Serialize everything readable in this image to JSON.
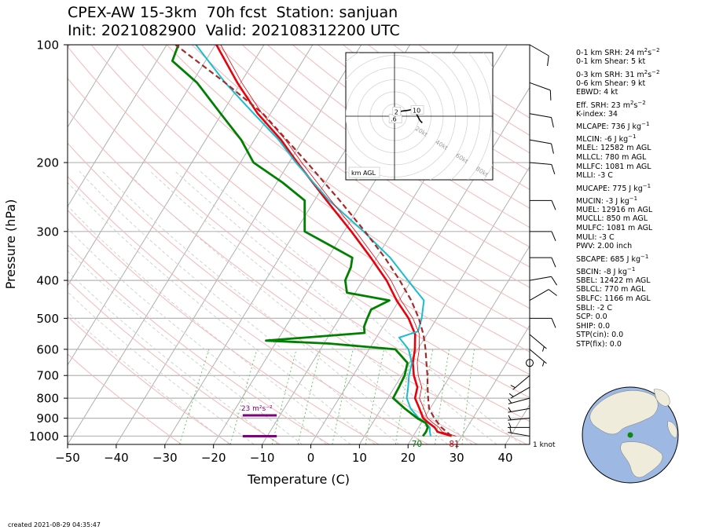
{
  "title": {
    "line1": "CPEX-AW 15-3km  70h fcst  Station: sanjuan",
    "line2": "Init: 2021082900  Valid: 202108312200 UTC"
  },
  "footer": {
    "created": "created 2021-08-29 04:35:47"
  },
  "colors": {
    "temperature": "#e8000b",
    "dewpoint": "#008000",
    "wetbulb": "#17becf",
    "parcel": "#a52a2a",
    "srh_bar": "#800080",
    "isotherm": "#b0b0b0",
    "dry_adiabat": "#f4b8b8",
    "mixing_ratio": "#5fbf5f",
    "moist_adiabat": "#c8c8c8"
  },
  "indices": [
    {
      "pre": "0-1 km SRH: 24 m",
      "sup1": "2",
      "mid": "s",
      "sup2": "−2",
      "post": ""
    },
    {
      "pre": "0-1 km Shear: 5 kt"
    },
    {
      "pre": "0-3 km SRH: 31 m",
      "sup1": "2",
      "mid": "s",
      "sup2": "−2",
      "post": ""
    },
    {
      "pre": "0-6 km Shear: 9 kt"
    },
    {
      "pre": "EBWD: 4 kt"
    },
    {
      "pre": "Eff. SRH: 23 m",
      "sup1": "2",
      "mid": "s",
      "sup2": "−2",
      "post": ""
    },
    {
      "pre": "K-index: 34"
    },
    {
      "pre": "MLCAPE: 736 J kg",
      "sup1": "−1"
    },
    {
      "pre": "MLCIN: -6 J kg",
      "sup1": "−1"
    },
    {
      "pre": "MLEL: 12582 m AGL"
    },
    {
      "pre": "MLLCL: 780 m AGL"
    },
    {
      "pre": "MLLFC: 1081 m AGL"
    },
    {
      "pre": "MLLI: -3 C"
    },
    {
      "pre": "MUCAPE: 775 J kg",
      "sup1": "−1"
    },
    {
      "pre": "MUCIN: -3 J kg",
      "sup1": "−1"
    },
    {
      "pre": "MUEL: 12916 m AGL"
    },
    {
      "pre": "MUCLL: 850 m AGL"
    },
    {
      "pre": "MULFC: 1081 m AGL"
    },
    {
      "pre": "MULI: -3 C"
    },
    {
      "pre": "PWV: 2.00 inch"
    },
    {
      "pre": "SBCAPE: 685 J kg",
      "sup1": "−1"
    },
    {
      "pre": "SBCIN: -8 J kg",
      "sup1": "−1"
    },
    {
      "pre": "SBEL: 12422 m AGL"
    },
    {
      "pre": "SBLCL: 770 m AGL"
    },
    {
      "pre": "SBLFC: 1166 m AGL"
    },
    {
      "pre": "SBLI: -2 C"
    },
    {
      "pre": "SCP: 0.0"
    },
    {
      "pre": "SHIP: 0.0"
    },
    {
      "pre": "STP(cin): 0.0"
    },
    {
      "pre": "STP(fix): 0.0"
    }
  ],
  "chart_data": {
    "type": "skew-t",
    "xlabel": "Temperature (C)",
    "ylabel": "Pressure (hPa)",
    "x_ticks": [
      -50,
      -40,
      -30,
      -20,
      -10,
      0,
      10,
      20,
      30,
      40
    ],
    "y_ticks": [
      100,
      200,
      300,
      400,
      500,
      600,
      700,
      800,
      900,
      1000
    ],
    "xlim": [
      -50,
      45
    ],
    "ylim": [
      1050,
      100
    ],
    "yscale": "log",
    "grid": true,
    "surface_labels": {
      "temperature": "81",
      "dewpoint": "70"
    },
    "series": [
      {
        "id": "temperature",
        "points": [
          [
            1000,
            27.9
          ],
          [
            975,
            24.5
          ],
          [
            950,
            23.3
          ],
          [
            925,
            21.5
          ],
          [
            900,
            19.8
          ],
          [
            850,
            17.8
          ],
          [
            800,
            15.6
          ],
          [
            750,
            14.7
          ],
          [
            700,
            12.5
          ],
          [
            650,
            10.7
          ],
          [
            600,
            9.4
          ],
          [
            550,
            7.6
          ],
          [
            500,
            4.2
          ],
          [
            450,
            -0.5
          ],
          [
            400,
            -5.1
          ],
          [
            350,
            -11.2
          ],
          [
            300,
            -18.5
          ],
          [
            250,
            -27.5
          ],
          [
            200,
            -38.3
          ],
          [
            175,
            -44.5
          ],
          [
            150,
            -52.6
          ],
          [
            125,
            -60.7
          ],
          [
            100,
            -69.8
          ]
        ]
      },
      {
        "id": "wetbulb",
        "points": [
          [
            1000,
            23.6
          ],
          [
            975,
            22.9
          ],
          [
            950,
            22.3
          ],
          [
            925,
            20.9
          ],
          [
            900,
            18.9
          ],
          [
            850,
            16
          ],
          [
            800,
            13.9
          ],
          [
            750,
            12.8
          ],
          [
            700,
            11.5
          ],
          [
            650,
            10.5
          ],
          [
            600,
            8.1
          ],
          [
            560,
            4.7
          ],
          [
            540,
            7.8
          ],
          [
            500,
            6.9
          ],
          [
            450,
            5.1
          ],
          [
            400,
            -0.7
          ],
          [
            350,
            -7.2
          ],
          [
            300,
            -16
          ],
          [
            250,
            -27
          ],
          [
            200,
            -38.6
          ],
          [
            175,
            -45
          ],
          [
            150,
            -53.4
          ],
          [
            125,
            -63.2
          ],
          [
            100,
            -74
          ]
        ]
      },
      {
        "id": "dewpoint",
        "points": [
          [
            1000,
            22
          ],
          [
            975,
            22.1
          ],
          [
            950,
            21.9
          ],
          [
            925,
            20.9
          ],
          [
            900,
            18.6
          ],
          [
            850,
            14.8
          ],
          [
            800,
            11.1
          ],
          [
            750,
            10.9
          ],
          [
            700,
            10.6
          ],
          [
            650,
            9.6
          ],
          [
            600,
            5.4
          ],
          [
            580,
            -9
          ],
          [
            570,
            -22.3
          ],
          [
            545,
            -3
          ],
          [
            525,
            -3.9
          ],
          [
            500,
            -4.3
          ],
          [
            475,
            -4.6
          ],
          [
            450,
            -2
          ],
          [
            430,
            -11.7
          ],
          [
            400,
            -13.6
          ],
          [
            370,
            -14.1
          ],
          [
            350,
            -15
          ],
          [
            330,
            -20
          ],
          [
            300,
            -28.1
          ],
          [
            250,
            -32
          ],
          [
            225,
            -38.8
          ],
          [
            200,
            -47.3
          ],
          [
            175,
            -52.7
          ],
          [
            150,
            -60.2
          ],
          [
            125,
            -69
          ],
          [
            110,
            -76.8
          ],
          [
            100,
            -77.6
          ]
        ]
      },
      {
        "id": "parcel",
        "points": [
          [
            1000,
            27.9
          ],
          [
            950,
            24.7
          ],
          [
            900,
            22.1
          ],
          [
            850,
            19.8
          ],
          [
            800,
            18.3
          ],
          [
            750,
            16.8
          ],
          [
            700,
            15.3
          ],
          [
            650,
            13.5
          ],
          [
            600,
            11.6
          ],
          [
            550,
            9.3
          ],
          [
            500,
            6.3
          ],
          [
            450,
            2.5
          ],
          [
            400,
            -2.4
          ],
          [
            350,
            -8.3
          ],
          [
            300,
            -15.7
          ],
          [
            250,
            -24.8
          ],
          [
            200,
            -36.3
          ],
          [
            150,
            -51.5
          ],
          [
            125,
            -63.2
          ],
          [
            100,
            -78.2
          ]
        ]
      }
    ],
    "srh_bar": {
      "label": "23 m²s⁻²",
      "top_hPa": 885,
      "bottom_hPa": 1000,
      "x_range": [
        -14,
        -7
      ]
    },
    "wind_unit_label": "1 knot",
    "wind_barbs": [
      {
        "p": 1000,
        "kt": 5,
        "dir": 280,
        "calm": false
      },
      {
        "p": 950,
        "kt": 5,
        "dir": 270
      },
      {
        "p": 900,
        "kt": 5,
        "dir": 265
      },
      {
        "p": 850,
        "kt": 5,
        "dir": 260
      },
      {
        "p": 800,
        "kt": 5,
        "dir": 255
      },
      {
        "p": 750,
        "kt": 5,
        "dir": 240
      },
      {
        "p": 700,
        "kt": 5,
        "dir": 230
      },
      {
        "p": 650,
        "kt": 0,
        "dir": 0,
        "calm": true
      },
      {
        "p": 600,
        "kt": 5,
        "dir": 130
      },
      {
        "p": 550,
        "kt": 5,
        "dir": 130
      },
      {
        "p": 500,
        "kt": 10,
        "dir": 90
      },
      {
        "p": 450,
        "kt": 10,
        "dir": 60
      },
      {
        "p": 400,
        "kt": 10,
        "dir": 80
      },
      {
        "p": 350,
        "kt": 10,
        "dir": 90
      },
      {
        "p": 300,
        "kt": 10,
        "dir": 90
      },
      {
        "p": 250,
        "kt": 10,
        "dir": 90
      },
      {
        "p": 200,
        "kt": 10,
        "dir": 95
      },
      {
        "p": 175,
        "kt": 10,
        "dir": 100
      },
      {
        "p": 150,
        "kt": 10,
        "dir": 100
      },
      {
        "p": 125,
        "kt": 10,
        "dir": 110
      },
      {
        "p": 100,
        "kt": 10,
        "dir": 120
      }
    ],
    "hodograph": {
      "rings_kt": [
        20,
        40,
        60,
        80
      ],
      "ring_labels": [
        "20kt",
        "40kt",
        "60kt",
        "80kt"
      ],
      "unit_label": "km AGL",
      "height_labels": [
        {
          "label": ".6",
          "u": -2,
          "v": -5
        },
        {
          "label": "2",
          "u": 3,
          "v": 5
        },
        {
          "label": "10",
          "u": 28,
          "v": 7
        }
      ],
      "trace": [
        [
          0,
          0
        ],
        [
          -2,
          -5
        ],
        [
          -1,
          0
        ],
        [
          3,
          5
        ],
        [
          10,
          7
        ],
        [
          18,
          8
        ],
        [
          23,
          9
        ],
        [
          28,
          7
        ],
        [
          35,
          -6
        ],
        [
          38,
          -9
        ]
      ]
    },
    "globe": {
      "marker": "sanjuan"
    }
  }
}
